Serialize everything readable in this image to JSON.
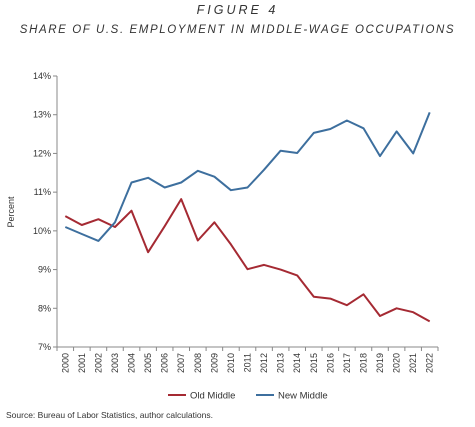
{
  "figure_label": "FIGURE 4",
  "source": "Source: Bureau of Labor Statistics, author calculations.",
  "chart_data": {
    "type": "line",
    "title": "SHARE OF U.S. EMPLOYMENT IN MIDDLE-WAGE OCCUPATIONS",
    "xlabel": "",
    "ylabel": "Percent",
    "x": [
      "2000",
      "2001",
      "2002",
      "2003",
      "2004",
      "2005",
      "2006",
      "2007",
      "2008",
      "2009",
      "2010",
      "2011",
      "2012",
      "2013",
      "2014",
      "2015",
      "2016",
      "2017",
      "2018",
      "2019",
      "2020",
      "2021",
      "2022"
    ],
    "ylim": [
      7,
      14
    ],
    "yticks": [
      7,
      8,
      9,
      10,
      11,
      12,
      13,
      14
    ],
    "ytick_labels": [
      "7%",
      "8%",
      "9%",
      "10%",
      "11%",
      "12%",
      "13%",
      "14%"
    ],
    "grid": false,
    "legend_position": "bottom",
    "series": [
      {
        "name": "Old Middle",
        "color": "#a52a33",
        "values": [
          10.38,
          10.15,
          10.3,
          10.1,
          10.52,
          9.45,
          10.12,
          10.82,
          9.75,
          10.22,
          9.65,
          9.01,
          9.12,
          9.0,
          8.85,
          8.3,
          8.25,
          8.08,
          8.36,
          7.8,
          8.0,
          7.9,
          7.66
        ]
      },
      {
        "name": "New Middle",
        "color": "#3d6f9e",
        "values": [
          10.1,
          9.92,
          9.74,
          10.22,
          11.25,
          11.37,
          11.12,
          11.25,
          11.55,
          11.4,
          11.05,
          11.12,
          11.58,
          12.07,
          12.01,
          12.53,
          12.63,
          12.85,
          12.65,
          11.93,
          12.57,
          12.0,
          13.06
        ]
      }
    ]
  }
}
